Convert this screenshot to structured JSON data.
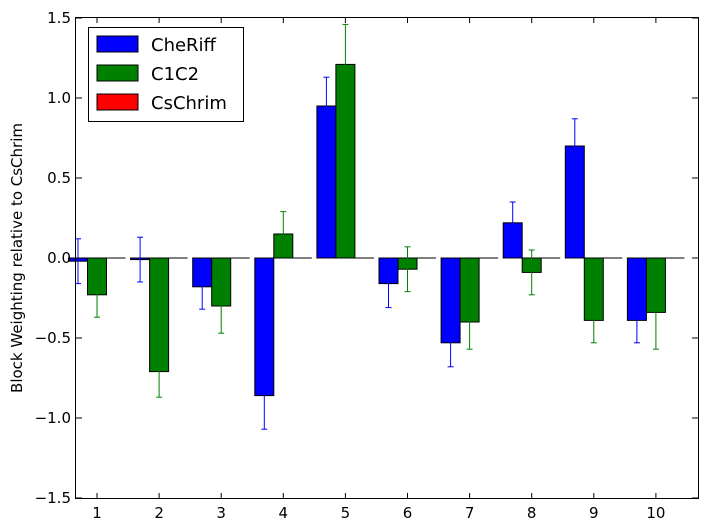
{
  "chart_data": {
    "type": "bar",
    "ylabel": "Block Weighting relative to CsChrim",
    "xlabel": "",
    "title": "",
    "categories": [
      "1",
      "2",
      "3",
      "4",
      "5",
      "6",
      "7",
      "8",
      "9",
      "10"
    ],
    "ylim": [
      -1.5,
      1.5
    ],
    "yticks": [
      -1.5,
      -1.0,
      -0.5,
      0.0,
      0.5,
      1.0,
      1.5
    ],
    "ytick_labels": [
      "−1.5",
      "−1.0",
      "−0.5",
      "0.0",
      "0.5",
      "1.0",
      "1.5"
    ],
    "grid": false,
    "legend_position": "top-left",
    "series": [
      {
        "name": "CheRiff",
        "color": "#0000ff",
        "values": [
          -0.02,
          -0.01,
          -0.18,
          -0.86,
          0.95,
          -0.16,
          -0.53,
          0.22,
          0.7,
          -0.39
        ],
        "errors": [
          0.14,
          0.14,
          0.14,
          0.21,
          0.18,
          0.15,
          0.15,
          0.13,
          0.17,
          0.14
        ]
      },
      {
        "name": "C1C2",
        "color": "#008000",
        "values": [
          -0.23,
          -0.71,
          -0.3,
          0.15,
          1.21,
          -0.07,
          -0.4,
          -0.09,
          -0.39,
          -0.34
        ],
        "errors": [
          0.14,
          0.16,
          0.17,
          0.14,
          0.25,
          0.14,
          0.17,
          0.14,
          0.14,
          0.23
        ]
      },
      {
        "name": "CsChrim",
        "color": "#ff0000",
        "values": [
          0,
          0,
          0,
          0,
          0,
          0,
          0,
          0,
          0,
          0
        ]
      }
    ]
  }
}
